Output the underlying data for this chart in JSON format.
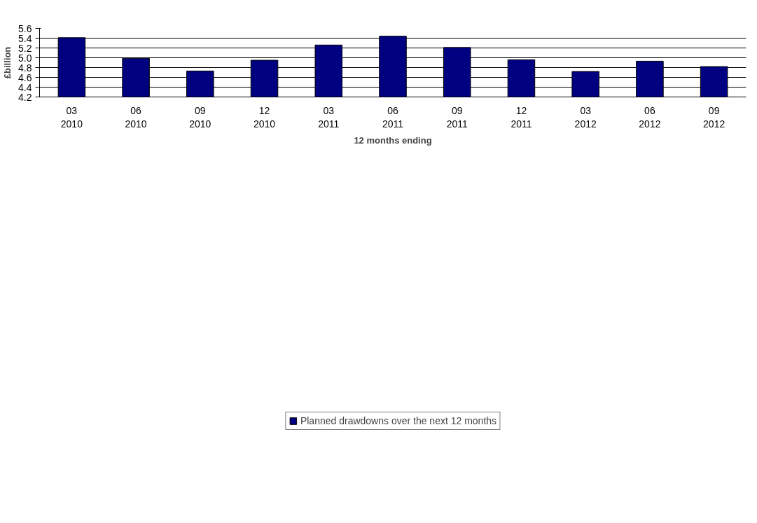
{
  "chart_data": {
    "type": "bar",
    "categories": [
      "03\n2010",
      "06\n2010",
      "09\n2010",
      "12\n2010",
      "03\n2011",
      "06\n2011",
      "09\n2011",
      "12\n2011",
      "03\n2012",
      "06\n2012",
      "09\n2012"
    ],
    "series": [
      {
        "name": "Planned drawdowns over the next 12 months",
        "color": "#000080",
        "values": [
          5.41,
          4.99,
          4.73,
          4.95,
          5.26,
          5.44,
          5.21,
          4.96,
          4.72,
          4.93,
          4.82
        ]
      }
    ],
    "xlabel": "12 months ending",
    "ylabel": "£billion",
    "ylim": [
      4.2,
      5.6
    ],
    "yticks": [
      {
        "value": 4.2,
        "label": "4.2"
      },
      {
        "value": 4.4,
        "label": "4.4"
      },
      {
        "value": 4.6,
        "label": "4.6"
      },
      {
        "value": 4.8,
        "label": "4.8"
      },
      {
        "value": 5.0,
        "label": "5.0"
      },
      {
        "value": 5.2,
        "label": "5.2"
      },
      {
        "value": 5.4,
        "label": "5.4"
      },
      {
        "value": 5.6,
        "label": "5.6"
      }
    ],
    "grid": "y",
    "legend": "bottom"
  }
}
